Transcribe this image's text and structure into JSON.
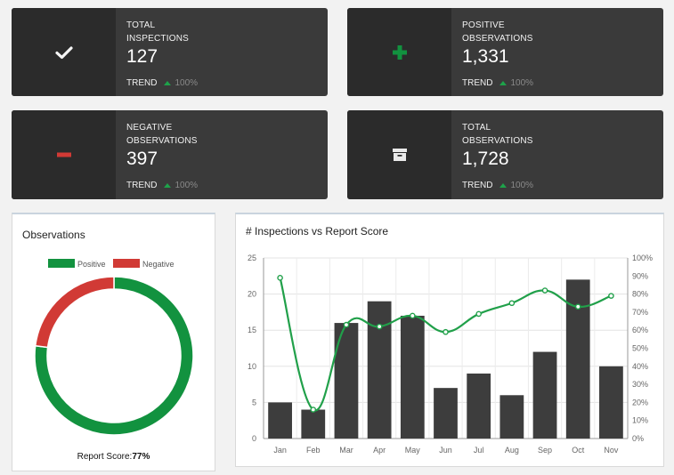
{
  "cards": [
    {
      "label": "TOTAL\nINSPECTIONS",
      "value": "127",
      "trend_label": "TREND",
      "trend_pct": "100%",
      "icon": "check-icon"
    },
    {
      "label": "POSITIVE\nOBSERVATIONS",
      "value": "1,331",
      "trend_label": "TREND",
      "trend_pct": "100%",
      "icon": "plus-icon"
    },
    {
      "label": "NEGATIVE\nOBSERVATIONS",
      "value": "397",
      "trend_label": "TREND",
      "trend_pct": "100%",
      "icon": "minus-icon"
    },
    {
      "label": "TOTAL\nOBSERVATIONS",
      "value": "1,728",
      "trend_label": "TREND",
      "trend_pct": "100%",
      "icon": "archive-icon"
    }
  ],
  "colors": {
    "card_bg": "#3a3a3a",
    "card_icon_bg": "#2b2b2b",
    "positive": "#12923f",
    "negative": "#d13a35",
    "bar": "#3d3d3d",
    "line": "#21a04a"
  },
  "observations": {
    "title": "Observations",
    "legend": [
      "Positive",
      "Negative"
    ],
    "score_label": "Report Score:",
    "score_value": "77%"
  },
  "inspections_chart_title": "# Inspections vs Report Score",
  "chart_data": [
    {
      "type": "pie",
      "title": "Observations",
      "labels": [
        "Positive",
        "Negative"
      ],
      "values": [
        1331,
        397
      ],
      "legend": "top"
    },
    {
      "type": "bar",
      "title": "# Inspections vs Report Score",
      "categories": [
        "Jan",
        "Feb",
        "Mar",
        "Apr",
        "May",
        "Jun",
        "Jul",
        "Aug",
        "Sep",
        "Oct",
        "Nov"
      ],
      "series": [
        {
          "type": "bar",
          "axis": "left",
          "values": [
            5,
            4,
            16,
            19,
            17,
            7,
            9,
            6,
            12,
            22,
            10
          ]
        },
        {
          "type": "line",
          "axis": "right",
          "values": [
            89,
            16,
            63,
            62,
            68,
            59,
            69,
            75,
            82,
            73,
            79
          ]
        }
      ],
      "left_axis": {
        "ylim": [
          0,
          25
        ],
        "ticks": [
          0,
          5,
          10,
          15,
          20,
          25
        ]
      },
      "right_axis": {
        "ylim": [
          0,
          100
        ],
        "ticks": [
          "0%",
          "10%",
          "20%",
          "30%",
          "40%",
          "50%",
          "60%",
          "70%",
          "80%",
          "90%",
          "100%"
        ]
      },
      "grid": true
    }
  ]
}
